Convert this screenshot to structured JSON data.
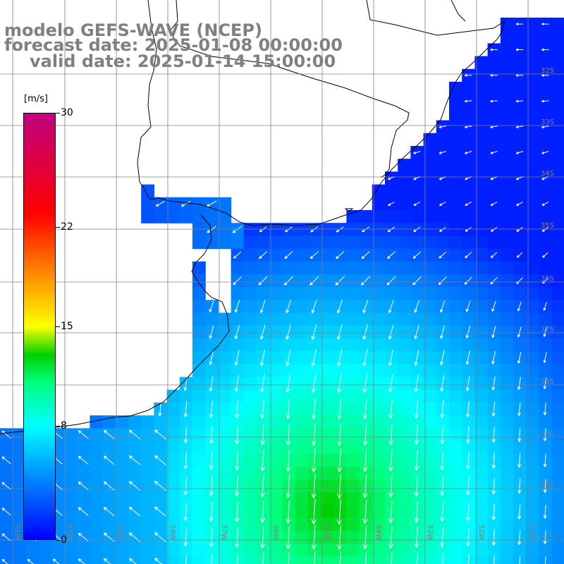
{
  "title": {
    "model": "modelo GEFS-WAVE (NCEP)",
    "forecast": "forecast date: 2025-01-08 00:00:00",
    "valid": "valid date: 2025-01-14 15:00:00"
  },
  "colorbar": {
    "unit": "[m/s]",
    "ticks": [
      {
        "value": 30,
        "label": "30"
      },
      {
        "value": 22,
        "label": "22"
      },
      {
        "value": 15,
        "label": "15"
      },
      {
        "value": 8,
        "label": "8"
      },
      {
        "value": 0,
        "label": "0"
      }
    ],
    "range": [
      0,
      30
    ],
    "stops": [
      {
        "value": 0,
        "color": "#0000ff"
      },
      {
        "value": 4,
        "color": "#0080ff"
      },
      {
        "value": 8,
        "color": "#00ffff"
      },
      {
        "value": 11,
        "color": "#00ff80"
      },
      {
        "value": 13,
        "color": "#00d000"
      },
      {
        "value": 15,
        "color": "#ffff00"
      },
      {
        "value": 19,
        "color": "#ff8000"
      },
      {
        "value": 23,
        "color": "#ff0000"
      },
      {
        "value": 30,
        "color": "#c00080"
      }
    ]
  },
  "lon_labels": [
    "61W",
    "60W",
    "59W",
    "58W",
    "57W",
    "56W",
    "55W",
    "54W",
    "53W",
    "52W",
    "51W"
  ],
  "lat_labels": [
    "32S",
    "33S",
    "34S",
    "35S",
    "36S",
    "37S",
    "38S",
    "39S",
    "40S",
    "41S"
  ],
  "colors": {
    "land": "#ffffff",
    "coast": "#000000",
    "grid": "#808080",
    "arrow": "#ffffff",
    "title": "#808080"
  }
}
